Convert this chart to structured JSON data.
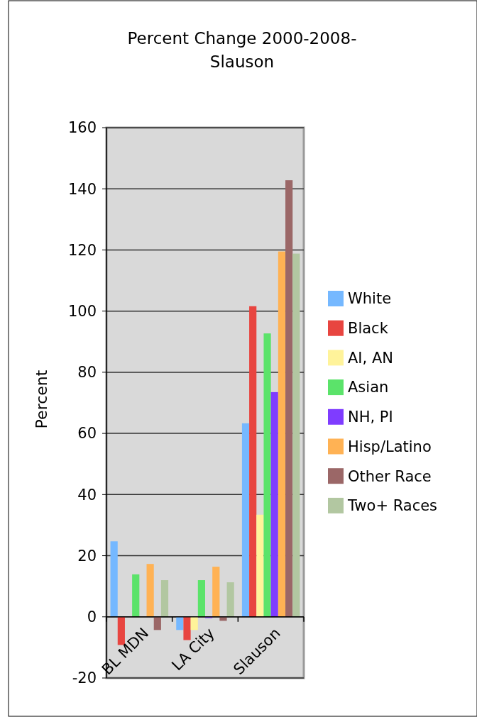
{
  "chart_data": {
    "type": "bar",
    "title": "Percent Change 2000-2008-\nSlauson",
    "ylabel": "Percent",
    "categories": [
      "BL MDN",
      "LA City",
      "Slauson"
    ],
    "series": [
      {
        "name": "White",
        "color": "#75b8ff",
        "values": [
          24.7,
          -4.3,
          63.3
        ]
      },
      {
        "name": "Black",
        "color": "#e84540",
        "values": [
          -9.2,
          -7.6,
          101.6
        ]
      },
      {
        "name": "AI, AN",
        "color": "#fff39a",
        "values": [
          0,
          -4.3,
          33.4
        ]
      },
      {
        "name": "Asian",
        "color": "#5be36a",
        "values": [
          13.9,
          12.0,
          92.7
        ]
      },
      {
        "name": "NH, PI",
        "color": "#7f3cff",
        "values": [
          0,
          -0.4,
          73.5
        ]
      },
      {
        "name": "Hisp/Latino",
        "color": "#ffb254",
        "values": [
          17.3,
          16.4,
          119.5
        ]
      },
      {
        "name": "Other Race",
        "color": "#9b6767",
        "values": [
          -4.3,
          -1.3,
          142.8
        ]
      },
      {
        "name": "Two+ Races",
        "color": "#b2c7a1",
        "values": [
          12.0,
          11.3,
          118.8
        ]
      }
    ],
    "ylim": [
      -20,
      160
    ],
    "yticks": [
      -20,
      0,
      20,
      40,
      60,
      80,
      100,
      120,
      140,
      160
    ],
    "grid": "y",
    "legend": "right"
  }
}
